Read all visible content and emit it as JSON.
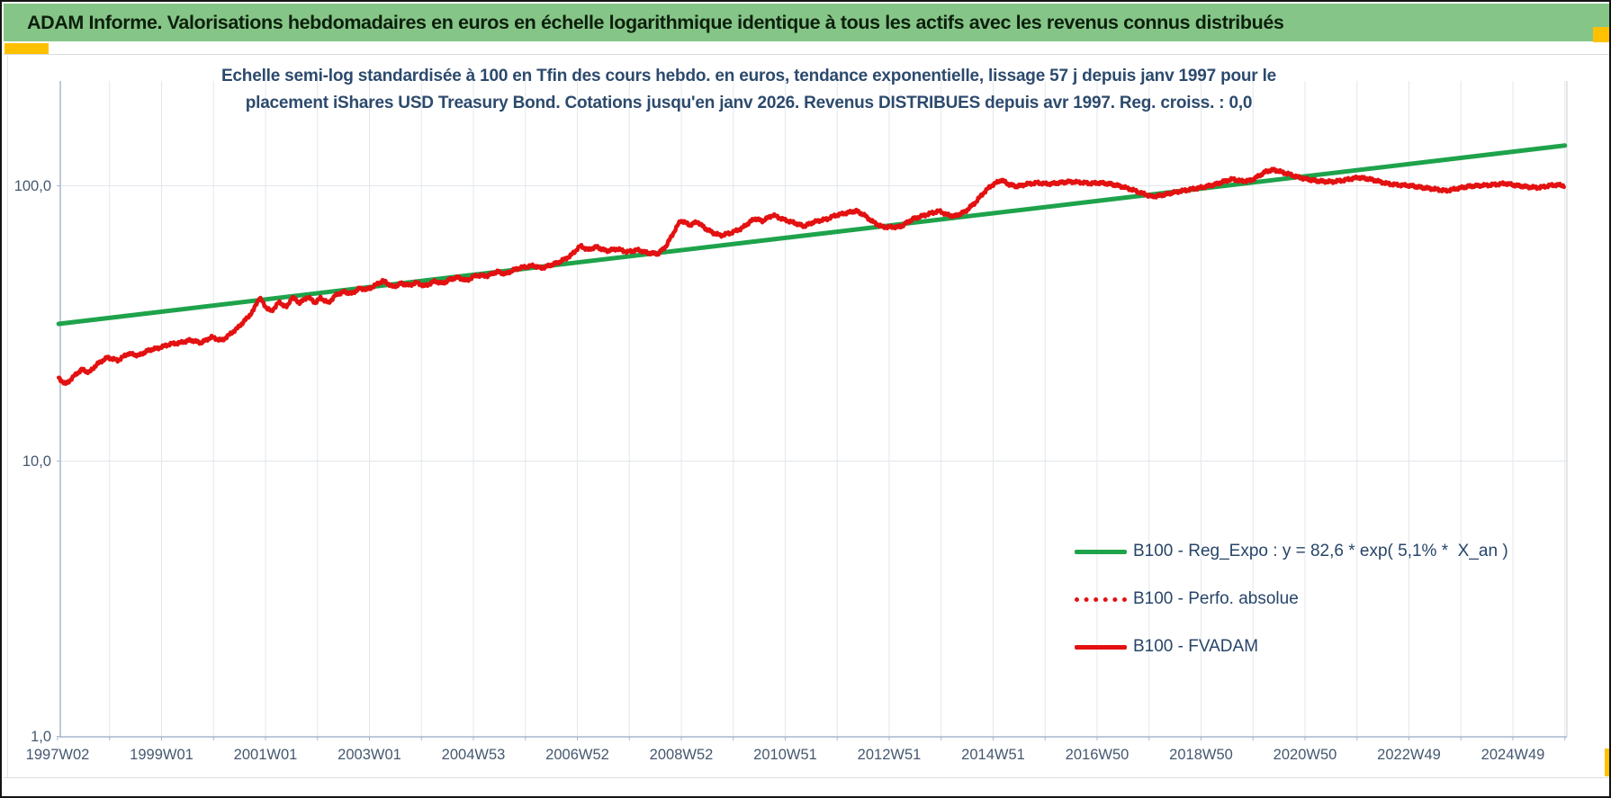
{
  "window": {
    "title": "ADAM Informe. Valorisations hebdomadaires en euros en échelle logarithmique identique à tous les actifs avec les revenus connus distribués"
  },
  "chart": {
    "title_line1": "Echelle semi-log standardisée à 100 en Tfin des cours hebdo. en euros, tendance exponentielle, lissage 57 j depuis janv 1997 pour le",
    "title_line2": "placement iShares USD Treasury Bond. Cotations jusqu'en janv 2026. Revenus DISTRIBUES depuis avr 1997. Reg. croiss. : 0,0"
  },
  "legend": {
    "items": [
      {
        "label": "B100 - Reg_Expo : y = 82,6 * exp( 5,1% *  X_an )",
        "style": "solid",
        "color": "#1ea34b"
      },
      {
        "label": "B100 - Perfo. absolue",
        "style": "dotted",
        "color": "#e31111"
      },
      {
        "label": "B100 - FVADAM",
        "style": "solid",
        "color": "#e31111"
      }
    ]
  },
  "axes": {
    "y_ticks": [
      {
        "label": "100,0",
        "value": 100
      },
      {
        "label": "10,0",
        "value": 10
      },
      {
        "label": "1,0",
        "value": 1
      }
    ],
    "x_ticks": [
      "1997W02",
      "1999W01",
      "2001W01",
      "2003W01",
      "2004W53",
      "2006W52",
      "2008W52",
      "2010W51",
      "2012W51",
      "2014W51",
      "2016W50",
      "2018W50",
      "2020W50",
      "2022W49",
      "2024W49"
    ]
  },
  "colors": {
    "header_bg": "#86c588",
    "header_text": "#0c200c",
    "gold_accent": "#ffc000",
    "title_text": "#2c4a6d",
    "axis_text": "#45586f",
    "legend_text": "#274569",
    "gridline": "#e3e7ec",
    "axis_line": "#a6b8cd",
    "plot_border": "#c8cdd3",
    "trend_green": "#1ea34b",
    "series_red": "#e31111"
  },
  "chart_data": {
    "type": "line",
    "title": "Echelle semi-log standardisée à 100 en Tfin des cours hebdo. en euros, tendance exponentielle, lissage 57 j depuis janv 1997 pour le placement iShares USD Treasury Bond. Cotations jusqu'en janv 2026. Revenus DISTRIBUES depuis avr 1997. Reg. croiss. : 0,0",
    "y_scale": "log10",
    "ylim": [
      1,
      240
    ],
    "y_gridlines": [
      10,
      100
    ],
    "x_range_years": [
      1997.04,
      2026.04
    ],
    "x_tick_interval_years": 2,
    "grid": "vertical-yearly",
    "legend_position": "inside-right",
    "series": [
      {
        "name": "B100 - Reg_Expo",
        "style": "solid",
        "color": "#1ea34b",
        "model": "exponential",
        "formula": "y = 82,6 * exp( 5,1% * X_an )",
        "growth_rate_pct_per_year": 5.1,
        "points": [
          [
            1997.06,
            31.5
          ],
          [
            2026.04,
            140.0
          ]
        ]
      },
      {
        "name": "B100 - Perfo. absolue",
        "style": "dotted",
        "color": "#e31111",
        "note": "coincides with B100 - FVADAM (revenus distribués) — not separately visible",
        "points": []
      },
      {
        "name": "B100 - FVADAM",
        "style": "solid",
        "color": "#e31111",
        "normalized_to": "100 at final date (Tfin, janv 2026)",
        "points": [
          [
            1997.06,
            20.0
          ],
          [
            1997.2,
            19.0
          ],
          [
            1997.35,
            20.3
          ],
          [
            1997.5,
            21.5
          ],
          [
            1997.65,
            21.0
          ],
          [
            1997.8,
            22.5
          ],
          [
            1998.0,
            23.8
          ],
          [
            1998.2,
            23.2
          ],
          [
            1998.4,
            24.6
          ],
          [
            1998.6,
            24.2
          ],
          [
            1998.8,
            25.3
          ],
          [
            1999.0,
            25.8
          ],
          [
            1999.2,
            26.6
          ],
          [
            1999.4,
            26.9
          ],
          [
            1999.6,
            27.5
          ],
          [
            1999.8,
            26.9
          ],
          [
            2000.0,
            28.2
          ],
          [
            2000.2,
            27.4
          ],
          [
            2000.35,
            28.8
          ],
          [
            2000.5,
            30.4
          ],
          [
            2000.65,
            32.5
          ],
          [
            2000.8,
            35.0
          ],
          [
            2000.92,
            39.3
          ],
          [
            2001.05,
            36.2
          ],
          [
            2001.15,
            34.9
          ],
          [
            2001.3,
            37.8
          ],
          [
            2001.45,
            36.2
          ],
          [
            2001.55,
            39.4
          ],
          [
            2001.7,
            37.5
          ],
          [
            2001.85,
            39.5
          ],
          [
            2002.0,
            37.6
          ],
          [
            2002.1,
            39.2
          ],
          [
            2002.25,
            37.5
          ],
          [
            2002.4,
            40.2
          ],
          [
            2002.55,
            41.2
          ],
          [
            2002.7,
            40.6
          ],
          [
            2002.85,
            42.4
          ],
          [
            2003.0,
            42.0
          ],
          [
            2003.15,
            43.5
          ],
          [
            2003.3,
            45.2
          ],
          [
            2003.5,
            42.9
          ],
          [
            2003.65,
            44.2
          ],
          [
            2003.8,
            43.5
          ],
          [
            2003.95,
            44.5
          ],
          [
            2004.1,
            43.2
          ],
          [
            2004.3,
            45.0
          ],
          [
            2004.45,
            44.2
          ],
          [
            2004.6,
            45.8
          ],
          [
            2004.75,
            46.5
          ],
          [
            2004.9,
            45.2
          ],
          [
            2005.1,
            47.3
          ],
          [
            2005.3,
            47.0
          ],
          [
            2005.5,
            48.8
          ],
          [
            2005.65,
            47.8
          ],
          [
            2005.85,
            49.8
          ],
          [
            2006.0,
            50.6
          ],
          [
            2006.2,
            51.3
          ],
          [
            2006.35,
            50.2
          ],
          [
            2006.5,
            51.3
          ],
          [
            2006.7,
            52.9
          ],
          [
            2006.9,
            55.5
          ],
          [
            2007.1,
            60.5
          ],
          [
            2007.25,
            58.5
          ],
          [
            2007.4,
            60.0
          ],
          [
            2007.6,
            58.0
          ],
          [
            2007.8,
            59.0
          ],
          [
            2008.0,
            57.5
          ],
          [
            2008.2,
            58.5
          ],
          [
            2008.4,
            57.0
          ],
          [
            2008.6,
            56.7
          ],
          [
            2008.75,
            60.5
          ],
          [
            2008.9,
            68.0
          ],
          [
            2009.03,
            75.0
          ],
          [
            2009.2,
            72.0
          ],
          [
            2009.35,
            74.0
          ],
          [
            2009.5,
            70.0
          ],
          [
            2009.65,
            67.5
          ],
          [
            2009.8,
            66.0
          ],
          [
            2010.0,
            67.5
          ],
          [
            2010.2,
            70.0
          ],
          [
            2010.45,
            76.0
          ],
          [
            2010.6,
            74.5
          ],
          [
            2010.8,
            78.3
          ],
          [
            2011.0,
            75.5
          ],
          [
            2011.2,
            73.5
          ],
          [
            2011.4,
            71.3
          ],
          [
            2011.6,
            74.0
          ],
          [
            2011.85,
            75.8
          ],
          [
            2012.0,
            78.0
          ],
          [
            2012.25,
            79.9
          ],
          [
            2012.4,
            81.1
          ],
          [
            2012.55,
            78.5
          ],
          [
            2012.7,
            74.5
          ],
          [
            2012.9,
            70.9
          ],
          [
            2013.1,
            70.8
          ],
          [
            2013.25,
            70.9
          ],
          [
            2013.5,
            75.8
          ],
          [
            2013.75,
            78.5
          ],
          [
            2014.0,
            81.0
          ],
          [
            2014.15,
            78.5
          ],
          [
            2014.3,
            77.5
          ],
          [
            2014.5,
            80.5
          ],
          [
            2014.7,
            87.0
          ],
          [
            2014.85,
            94.0
          ],
          [
            2015.0,
            100.0
          ],
          [
            2015.2,
            105.0
          ],
          [
            2015.35,
            101.0
          ],
          [
            2015.5,
            99.5
          ],
          [
            2015.7,
            101.5
          ],
          [
            2015.9,
            102.5
          ],
          [
            2016.1,
            101.5
          ],
          [
            2016.3,
            102.5
          ],
          [
            2016.5,
            103.5
          ],
          [
            2016.7,
            103.0
          ],
          [
            2016.9,
            102.0
          ],
          [
            2017.1,
            102.5
          ],
          [
            2017.3,
            101.5
          ],
          [
            2017.5,
            99.5
          ],
          [
            2017.7,
            97.0
          ],
          [
            2017.9,
            94.0
          ],
          [
            2018.1,
            91.3
          ],
          [
            2018.3,
            92.5
          ],
          [
            2018.5,
            94.5
          ],
          [
            2018.7,
            96.0
          ],
          [
            2018.9,
            97.5
          ],
          [
            2019.1,
            99.0
          ],
          [
            2019.3,
            101.0
          ],
          [
            2019.5,
            104.0
          ],
          [
            2019.65,
            105.8
          ],
          [
            2019.8,
            104.0
          ],
          [
            2020.0,
            104.5
          ],
          [
            2020.15,
            108.5
          ],
          [
            2020.3,
            113.0
          ],
          [
            2020.45,
            114.3
          ],
          [
            2020.6,
            112.0
          ],
          [
            2020.75,
            110.0
          ],
          [
            2020.9,
            107.5
          ],
          [
            2021.1,
            105.5
          ],
          [
            2021.3,
            104.0
          ],
          [
            2021.55,
            103.4
          ],
          [
            2021.75,
            104.5
          ],
          [
            2021.9,
            105.8
          ],
          [
            2022.07,
            107.2
          ],
          [
            2022.25,
            106.0
          ],
          [
            2022.4,
            104.5
          ],
          [
            2022.6,
            102.0
          ],
          [
            2022.8,
            100.8
          ],
          [
            2023.05,
            100.2
          ],
          [
            2023.3,
            98.5
          ],
          [
            2023.55,
            97.2
          ],
          [
            2023.75,
            95.9
          ],
          [
            2024.0,
            98.0
          ],
          [
            2024.2,
            99.6
          ],
          [
            2024.45,
            100.3
          ],
          [
            2024.65,
            100.8
          ],
          [
            2024.9,
            102.0
          ],
          [
            2025.1,
            100.3
          ],
          [
            2025.36,
            98.9
          ],
          [
            2025.55,
            98.5
          ],
          [
            2025.75,
            100.2
          ],
          [
            2025.9,
            100.8
          ],
          [
            2026.04,
            100.0
          ]
        ]
      }
    ]
  }
}
